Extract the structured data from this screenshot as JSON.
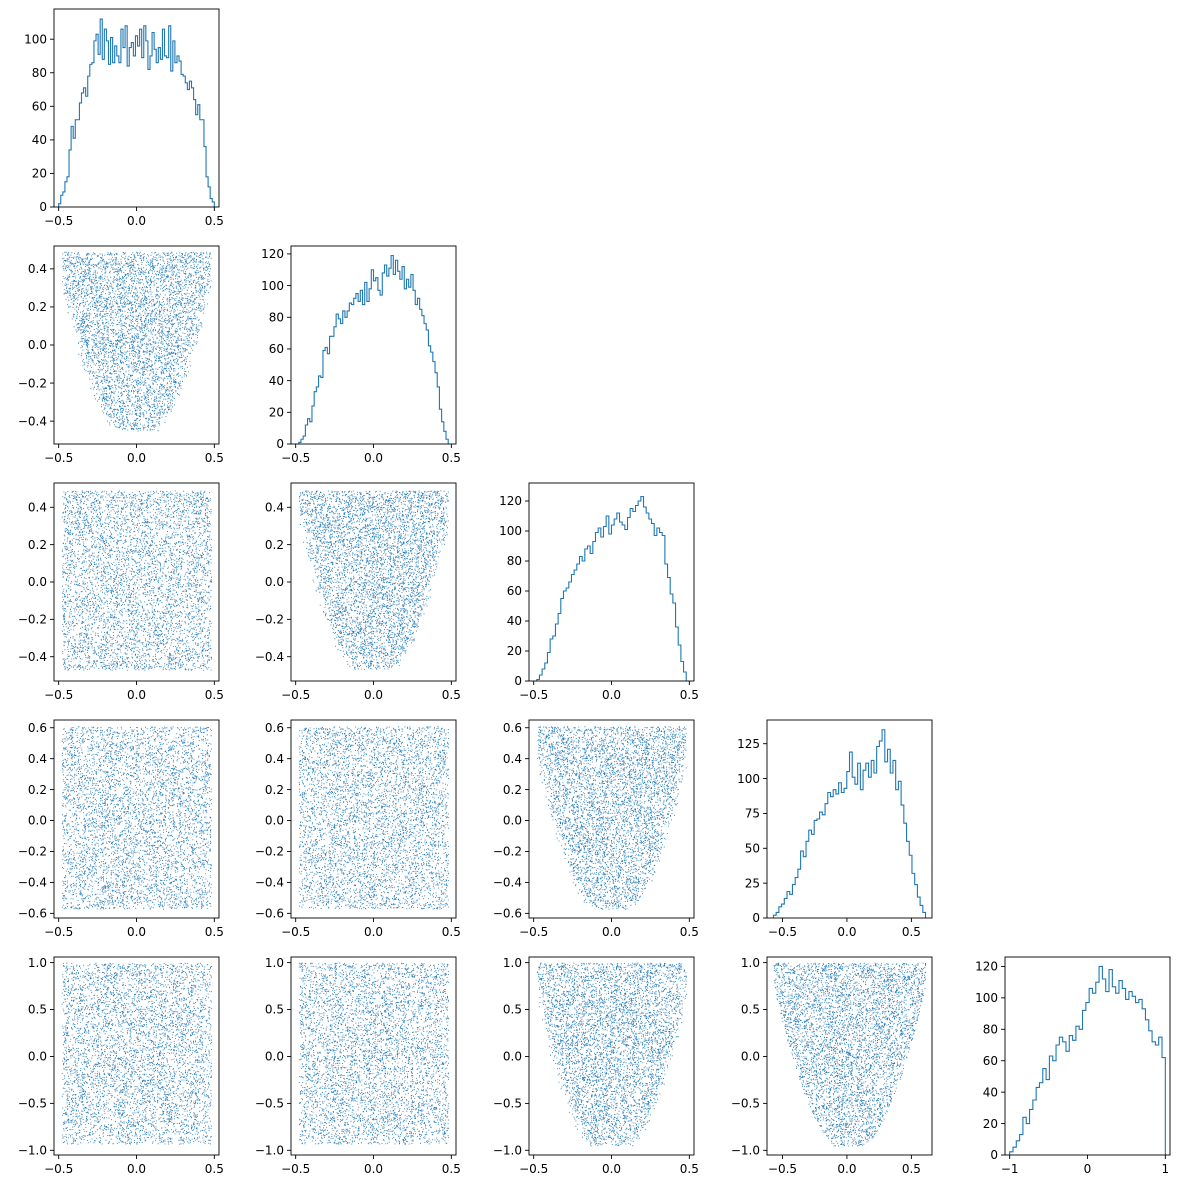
{
  "chart_data": {
    "type": "corner",
    "color": "#1f77b4",
    "grid": false,
    "n_variables": 5,
    "hist_panels": [
      {
        "name": "var-1-histogram",
        "type": "step-histogram",
        "xlim": [
          -0.53,
          0.53
        ],
        "ylim": [
          0,
          118
        ],
        "xticks": [
          -0.5,
          0.0,
          0.5
        ],
        "xtick_labels": [
          "−0.5",
          "0.0",
          "0.5"
        ],
        "yticks": [
          0,
          20,
          40,
          60,
          80,
          100
        ],
        "ytick_labels": [
          "0",
          "20",
          "40",
          "60",
          "80",
          "100"
        ],
        "bin_range": [
          -0.5,
          0.5
        ],
        "counts": [
          2,
          7,
          9,
          15,
          18,
          34,
          48,
          41,
          52,
          52,
          62,
          68,
          71,
          66,
          78,
          85,
          86,
          99,
          103,
          91,
          112,
          88,
          106,
          99,
          85,
          101,
          86,
          96,
          90,
          86,
          106,
          95,
          108,
          84,
          95,
          98,
          90,
          102,
          96,
          106,
          89,
          108,
          99,
          82,
          90,
          104,
          94,
          86,
          95,
          88,
          106,
          90,
          89,
          108,
          81,
          99,
          86,
          90,
          87,
          79,
          78,
          74,
          70,
          75,
          71,
          64,
          55,
          61,
          52,
          52,
          36,
          18,
          12,
          5,
          3
        ]
      },
      {
        "name": "var-2-histogram",
        "type": "step-histogram",
        "xlim": [
          -0.53,
          0.53
        ],
        "ylim": [
          0,
          125
        ],
        "xticks": [
          -0.5,
          0.0,
          0.5
        ],
        "xtick_labels": [
          "−0.5",
          "0.0",
          "0.5"
        ],
        "yticks": [
          0,
          20,
          40,
          60,
          80,
          100,
          120
        ],
        "ytick_labels": [
          "0",
          "20",
          "40",
          "60",
          "80",
          "100",
          "120"
        ],
        "bin_range": [
          -0.48,
          0.48
        ],
        "counts": [
          1,
          3,
          5,
          12,
          16,
          14,
          24,
          33,
          36,
          43,
          42,
          59,
          61,
          57,
          68,
          68,
          74,
          82,
          79,
          76,
          84,
          80,
          84,
          89,
          88,
          92,
          95,
          90,
          97,
          88,
          102,
          90,
          98,
          110,
          103,
          105,
          97,
          94,
          108,
          113,
          106,
          111,
          119,
          107,
          116,
          109,
          104,
          112,
          98,
          104,
          99,
          107,
          97,
          88,
          92,
          85,
          81,
          76,
          72,
          62,
          58,
          52,
          45,
          36,
          22,
          14,
          8,
          3
        ]
      },
      {
        "name": "var-3-histogram",
        "type": "step-histogram",
        "xlim": [
          -0.53,
          0.53
        ],
        "ylim": [
          0,
          132
        ],
        "xticks": [
          -0.5,
          0.0,
          0.5
        ],
        "xtick_labels": [
          "−0.5",
          "0.0",
          "0.5"
        ],
        "yticks": [
          0,
          20,
          40,
          60,
          80,
          100,
          120
        ],
        "ytick_labels": [
          "0",
          "20",
          "40",
          "60",
          "80",
          "100",
          "120"
        ],
        "bin_range": [
          -0.48,
          0.48
        ],
        "counts": [
          1,
          4,
          8,
          12,
          19,
          28,
          30,
          38,
          45,
          55,
          60,
          62,
          66,
          71,
          74,
          78,
          83,
          80,
          88,
          90,
          85,
          93,
          99,
          102,
          96,
          103,
          110,
          98,
          104,
          108,
          112,
          106,
          104,
          101,
          109,
          115,
          113,
          117,
          120,
          123,
          116,
          112,
          108,
          105,
          97,
          102,
          99,
          97,
          78,
          69,
          58,
          52,
          36,
          24,
          13,
          6
        ]
      },
      {
        "name": "var-4-histogram",
        "type": "step-histogram",
        "xlim": [
          -0.62,
          0.66
        ],
        "ylim": [
          0,
          142
        ],
        "xticks": [
          -0.5,
          0.0,
          0.5
        ],
        "xtick_labels": [
          "−0.5",
          "0.0",
          "0.5"
        ],
        "yticks": [
          0,
          25,
          50,
          75,
          100,
          125
        ],
        "ytick_labels": [
          "0",
          "25",
          "50",
          "75",
          "100",
          "125"
        ],
        "bin_range": [
          -0.57,
          0.61
        ],
        "counts": [
          2,
          4,
          8,
          10,
          14,
          19,
          17,
          24,
          29,
          35,
          48,
          44,
          55,
          63,
          60,
          70,
          71,
          76,
          74,
          82,
          90,
          87,
          92,
          89,
          97,
          90,
          93,
          105,
          119,
          101,
          96,
          111,
          92,
          106,
          111,
          101,
          113,
          104,
          123,
          127,
          135,
          112,
          121,
          104,
          113,
          92,
          98,
          81,
          68,
          55,
          45,
          32,
          24,
          15,
          9,
          4
        ]
      },
      {
        "name": "var-5-histogram",
        "type": "step-histogram",
        "xlim": [
          -1.06,
          1.06
        ],
        "ylim": [
          0,
          126
        ],
        "xticks": [
          -1,
          0,
          1
        ],
        "xtick_labels": [
          "−1",
          "0",
          "1"
        ],
        "yticks": [
          0,
          20,
          40,
          60,
          80,
          100,
          120
        ],
        "ytick_labels": [
          "0",
          "20",
          "40",
          "60",
          "80",
          "100",
          "120"
        ],
        "bin_range": [
          -1.0,
          1.0
        ],
        "counts": [
          2,
          5,
          9,
          13,
          24,
          20,
          29,
          35,
          43,
          46,
          55,
          48,
          63,
          60,
          70,
          75,
          72,
          66,
          76,
          73,
          82,
          80,
          92,
          97,
          106,
          103,
          110,
          120,
          112,
          104,
          118,
          107,
          103,
          111,
          106,
          99,
          104,
          101,
          97,
          99,
          93,
          86,
          79,
          72,
          70,
          75,
          62
        ]
      }
    ],
    "scatter_panels": [
      {
        "name": "scatter-2-vs-1",
        "row": 1,
        "col": 0,
        "xlim": [
          -0.53,
          0.53
        ],
        "ylim": [
          -0.52,
          0.52
        ],
        "xticks": [
          -0.5,
          0.0,
          0.5
        ],
        "xtick_labels": [
          "−0.5",
          "0.0",
          "0.5"
        ],
        "yticks": [
          -0.4,
          -0.2,
          0.0,
          0.2,
          0.4
        ],
        "ytick_labels": [
          "−0.4",
          "−0.2",
          "0.0",
          "0.2",
          "0.4"
        ],
        "n_points": 5000,
        "x_range": [
          -0.48,
          0.48
        ],
        "y_range": [
          -0.45,
          0.49
        ],
        "shape": "bowl",
        "seed": 11
      },
      {
        "name": "scatter-3-vs-1",
        "row": 2,
        "col": 0,
        "xlim": [
          -0.53,
          0.53
        ],
        "ylim": [
          -0.53,
          0.53
        ],
        "xticks": [
          -0.5,
          0.0,
          0.5
        ],
        "xtick_labels": [
          "−0.5",
          "0.0",
          "0.5"
        ],
        "yticks": [
          -0.4,
          -0.2,
          0.0,
          0.2,
          0.4
        ],
        "ytick_labels": [
          "−0.4",
          "−0.2",
          "0.0",
          "0.2",
          "0.4"
        ],
        "n_points": 5000,
        "x_range": [
          -0.48,
          0.48
        ],
        "y_range": [
          -0.47,
          0.49
        ],
        "shape": "box",
        "seed": 23
      },
      {
        "name": "scatter-3-vs-2",
        "row": 2,
        "col": 1,
        "xlim": [
          -0.53,
          0.53
        ],
        "ylim": [
          -0.53,
          0.53
        ],
        "xticks": [
          -0.5,
          0.0,
          0.5
        ],
        "xtick_labels": [
          "−0.5",
          "0.0",
          "0.5"
        ],
        "yticks": [
          -0.4,
          -0.2,
          0.0,
          0.2,
          0.4
        ],
        "ytick_labels": [
          "−0.4",
          "−0.2",
          "0.0",
          "0.2",
          "0.4"
        ],
        "n_points": 5000,
        "x_range": [
          -0.48,
          0.48
        ],
        "y_range": [
          -0.47,
          0.49
        ],
        "shape": "bowl",
        "seed": 37
      },
      {
        "name": "scatter-4-vs-1",
        "row": 3,
        "col": 0,
        "xlim": [
          -0.53,
          0.53
        ],
        "ylim": [
          -0.63,
          0.65
        ],
        "xticks": [
          -0.5,
          0.0,
          0.5
        ],
        "xtick_labels": [
          "−0.5",
          "0.0",
          "0.5"
        ],
        "yticks": [
          -0.6,
          -0.4,
          -0.2,
          0.0,
          0.2,
          0.4,
          0.6
        ],
        "ytick_labels": [
          "−0.6",
          "−0.4",
          "−0.2",
          "0.0",
          "0.2",
          "0.4",
          "0.6"
        ],
        "n_points": 5000,
        "x_range": [
          -0.48,
          0.48
        ],
        "y_range": [
          -0.57,
          0.61
        ],
        "shape": "box",
        "seed": 41
      },
      {
        "name": "scatter-4-vs-2",
        "row": 3,
        "col": 1,
        "xlim": [
          -0.53,
          0.53
        ],
        "ylim": [
          -0.63,
          0.65
        ],
        "xticks": [
          -0.5,
          0.0,
          0.5
        ],
        "xtick_labels": [
          "−0.5",
          "0.0",
          "0.5"
        ],
        "yticks": [
          -0.6,
          -0.4,
          -0.2,
          0.0,
          0.2,
          0.4,
          0.6
        ],
        "ytick_labels": [
          "−0.6",
          "−0.4",
          "−0.2",
          "0.0",
          "0.2",
          "0.4",
          "0.6"
        ],
        "n_points": 5000,
        "x_range": [
          -0.48,
          0.48
        ],
        "y_range": [
          -0.57,
          0.61
        ],
        "shape": "box",
        "seed": 53
      },
      {
        "name": "scatter-4-vs-3",
        "row": 3,
        "col": 2,
        "xlim": [
          -0.53,
          0.53
        ],
        "ylim": [
          -0.63,
          0.65
        ],
        "xticks": [
          -0.5,
          0.0,
          0.5
        ],
        "xtick_labels": [
          "−0.5",
          "0.0",
          "0.5"
        ],
        "yticks": [
          -0.6,
          -0.4,
          -0.2,
          0.0,
          0.2,
          0.4,
          0.6
        ],
        "ytick_labels": [
          "−0.6",
          "−0.4",
          "−0.2",
          "0.0",
          "0.2",
          "0.4",
          "0.6"
        ],
        "n_points": 5000,
        "x_range": [
          -0.48,
          0.48
        ],
        "y_range": [
          -0.57,
          0.61
        ],
        "shape": "bowl",
        "seed": 67
      },
      {
        "name": "scatter-5-vs-1",
        "row": 4,
        "col": 0,
        "xlim": [
          -0.53,
          0.53
        ],
        "ylim": [
          -1.05,
          1.06
        ],
        "xticks": [
          -0.5,
          0.0,
          0.5
        ],
        "xtick_labels": [
          "−0.5",
          "0.0",
          "0.5"
        ],
        "yticks": [
          -1.0,
          -0.5,
          0.0,
          0.5,
          1.0
        ],
        "ytick_labels": [
          "−1.0",
          "−0.5",
          "0.0",
          "0.5",
          "1.0"
        ],
        "n_points": 5000,
        "x_range": [
          -0.48,
          0.48
        ],
        "y_range": [
          -0.93,
          1.0
        ],
        "shape": "box",
        "seed": 71
      },
      {
        "name": "scatter-5-vs-2",
        "row": 4,
        "col": 1,
        "xlim": [
          -0.53,
          0.53
        ],
        "ylim": [
          -1.05,
          1.06
        ],
        "xticks": [
          -0.5,
          0.0,
          0.5
        ],
        "xtick_labels": [
          "−0.5",
          "0.0",
          "0.5"
        ],
        "yticks": [
          -1.0,
          -0.5,
          0.0,
          0.5,
          1.0
        ],
        "ytick_labels": [
          "−1.0",
          "−0.5",
          "0.0",
          "0.5",
          "1.0"
        ],
        "n_points": 5000,
        "x_range": [
          -0.48,
          0.48
        ],
        "y_range": [
          -0.93,
          1.0
        ],
        "shape": "box",
        "seed": 83
      },
      {
        "name": "scatter-5-vs-3",
        "row": 4,
        "col": 2,
        "xlim": [
          -0.53,
          0.53
        ],
        "ylim": [
          -1.05,
          1.06
        ],
        "xticks": [
          -0.5,
          0.0,
          0.5
        ],
        "xtick_labels": [
          "−0.5",
          "0.0",
          "0.5"
        ],
        "yticks": [
          -1.0,
          -0.5,
          0.0,
          0.5,
          1.0
        ],
        "ytick_labels": [
          "−1.0",
          "−0.5",
          "0.0",
          "0.5",
          "1.0"
        ],
        "n_points": 5000,
        "x_range": [
          -0.48,
          0.48
        ],
        "y_range": [
          -0.95,
          1.0
        ],
        "shape": "bowl",
        "seed": 97
      },
      {
        "name": "scatter-5-vs-4",
        "row": 4,
        "col": 3,
        "xlim": [
          -0.62,
          0.66
        ],
        "ylim": [
          -1.05,
          1.06
        ],
        "xticks": [
          -0.5,
          0.0,
          0.5
        ],
        "xtick_labels": [
          "−0.5",
          "0.0",
          "0.5"
        ],
        "yticks": [
          -1.0,
          -0.5,
          0.0,
          0.5,
          1.0
        ],
        "ytick_labels": [
          "−1.0",
          "−0.5",
          "0.0",
          "0.5",
          "1.0"
        ],
        "n_points": 5000,
        "x_range": [
          -0.57,
          0.61
        ],
        "y_range": [
          -0.95,
          1.0
        ],
        "shape": "parabola",
        "seed": 101
      }
    ]
  }
}
